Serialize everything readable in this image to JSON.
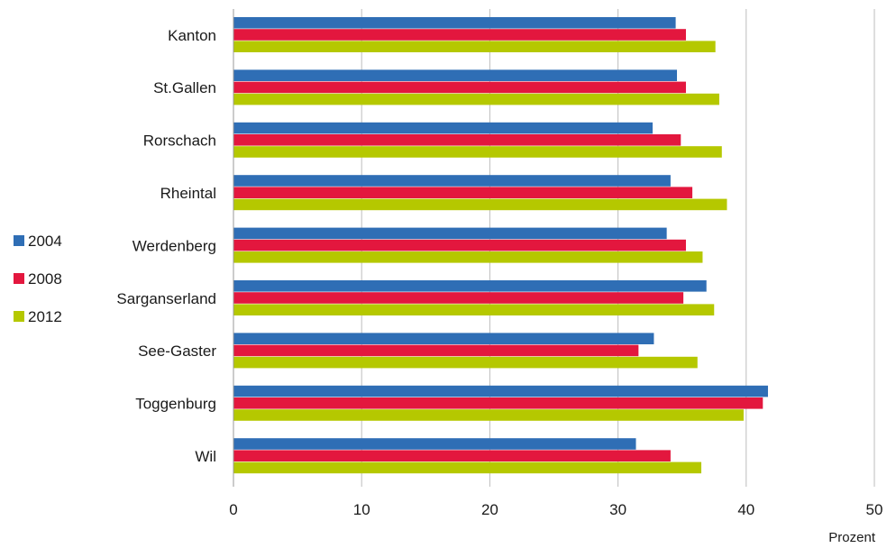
{
  "chart_data": {
    "type": "bar",
    "orientation": "horizontal",
    "categories": [
      "Kanton",
      "St.Gallen",
      "Rorschach",
      "Rheintal",
      "Werdenberg",
      "Sarganserland",
      "See-Gaster",
      "Toggenburg",
      "Wil"
    ],
    "series": [
      {
        "name": "2004",
        "color": "#2f6eb5",
        "values": [
          34.5,
          34.6,
          32.7,
          34.1,
          33.8,
          36.9,
          32.8,
          41.7,
          31.4
        ]
      },
      {
        "name": "2008",
        "color": "#e3173e",
        "values": [
          35.3,
          35.3,
          34.9,
          35.8,
          35.3,
          35.1,
          31.6,
          41.3,
          34.1
        ]
      },
      {
        "name": "2012",
        "color": "#b5c800",
        "values": [
          37.6,
          37.9,
          38.1,
          38.5,
          36.6,
          37.5,
          36.2,
          39.8,
          36.5
        ]
      }
    ],
    "xlim": [
      0,
      50
    ],
    "xticks": [
      "0",
      "10",
      "20",
      "30",
      "40",
      "50"
    ],
    "xunit": "Prozent",
    "grid": true,
    "legend_position": "left"
  }
}
